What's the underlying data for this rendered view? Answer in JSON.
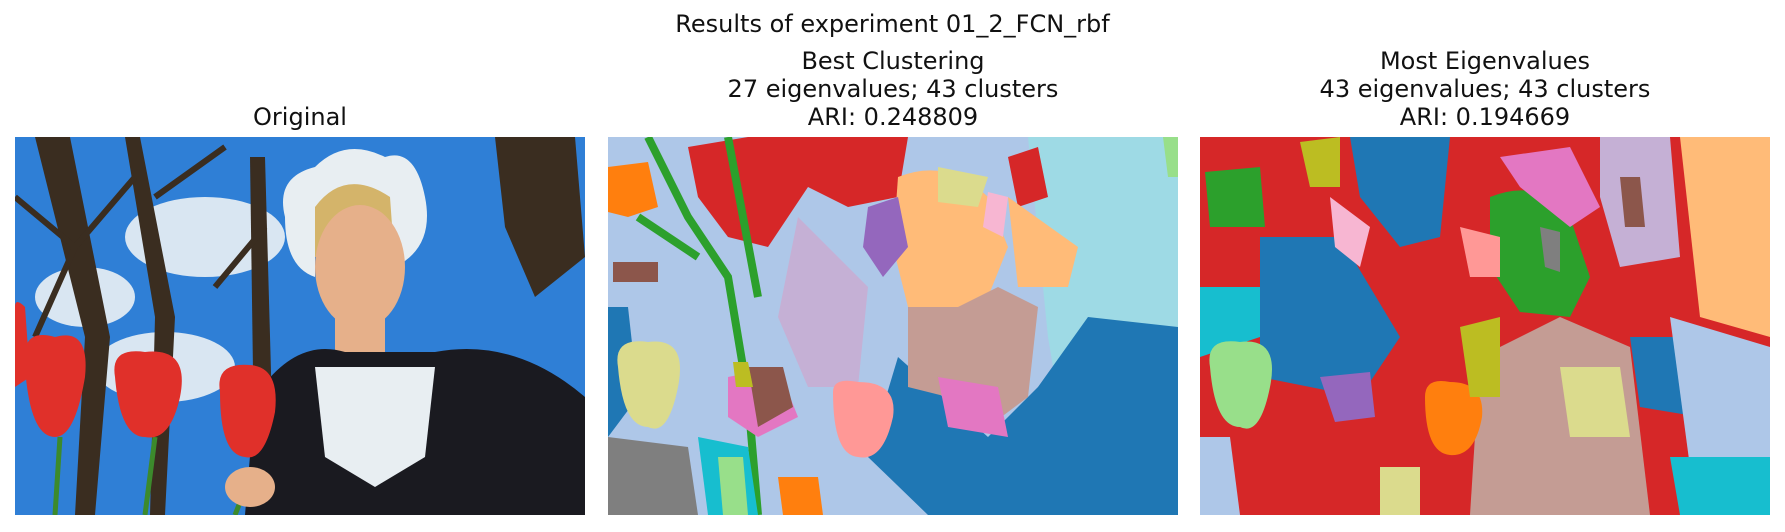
{
  "figure": {
    "suptitle": "Results of experiment 01_2_FCN_rbf",
    "panels": [
      {
        "id": "original",
        "title_lines": [
          "Original"
        ]
      },
      {
        "id": "best",
        "title_lines": [
          "Best Clustering",
          "27 eigenvalues; 43 clusters",
          "ARI: 0.248809"
        ]
      },
      {
        "id": "most",
        "title_lines": [
          "Most Eigenvalues",
          "43 eigenvalues; 43 clusters",
          "ARI: 0.194669"
        ]
      }
    ]
  },
  "palette": {
    "sky": "#2f7fd6",
    "cloud": "#d9e6f2",
    "tree": "#3a2d20",
    "skin": "#e6b08a",
    "hair": "#d4b46a",
    "cap": "#e8eef2",
    "dress": "#1a1a20",
    "tulip": "#e0302a",
    "stem": "#3c8a2c",
    "tab_blue": "#1f77b4",
    "tab_lightblue": "#aec7e8",
    "tab_orange": "#ff7f0e",
    "tab_peach": "#ffbb78",
    "tab_green": "#2ca02c",
    "tab_lightgreen": "#98df8a",
    "tab_red": "#d62728",
    "tab_pink": "#ff9896",
    "tab_purple": "#9467bd",
    "tab_lavender": "#c5b0d5",
    "tab_brown": "#8c564b",
    "tab_rose": "#c49c94",
    "tab_magenta": "#e377c2",
    "tab_lightpink": "#f7b6d2",
    "tab_gray": "#7f7f7f",
    "tab_olive": "#bcbd22",
    "tab_khaki": "#dbdb8d",
    "tab_cyan": "#17becf",
    "tab_lightcyan": "#9edae5"
  }
}
